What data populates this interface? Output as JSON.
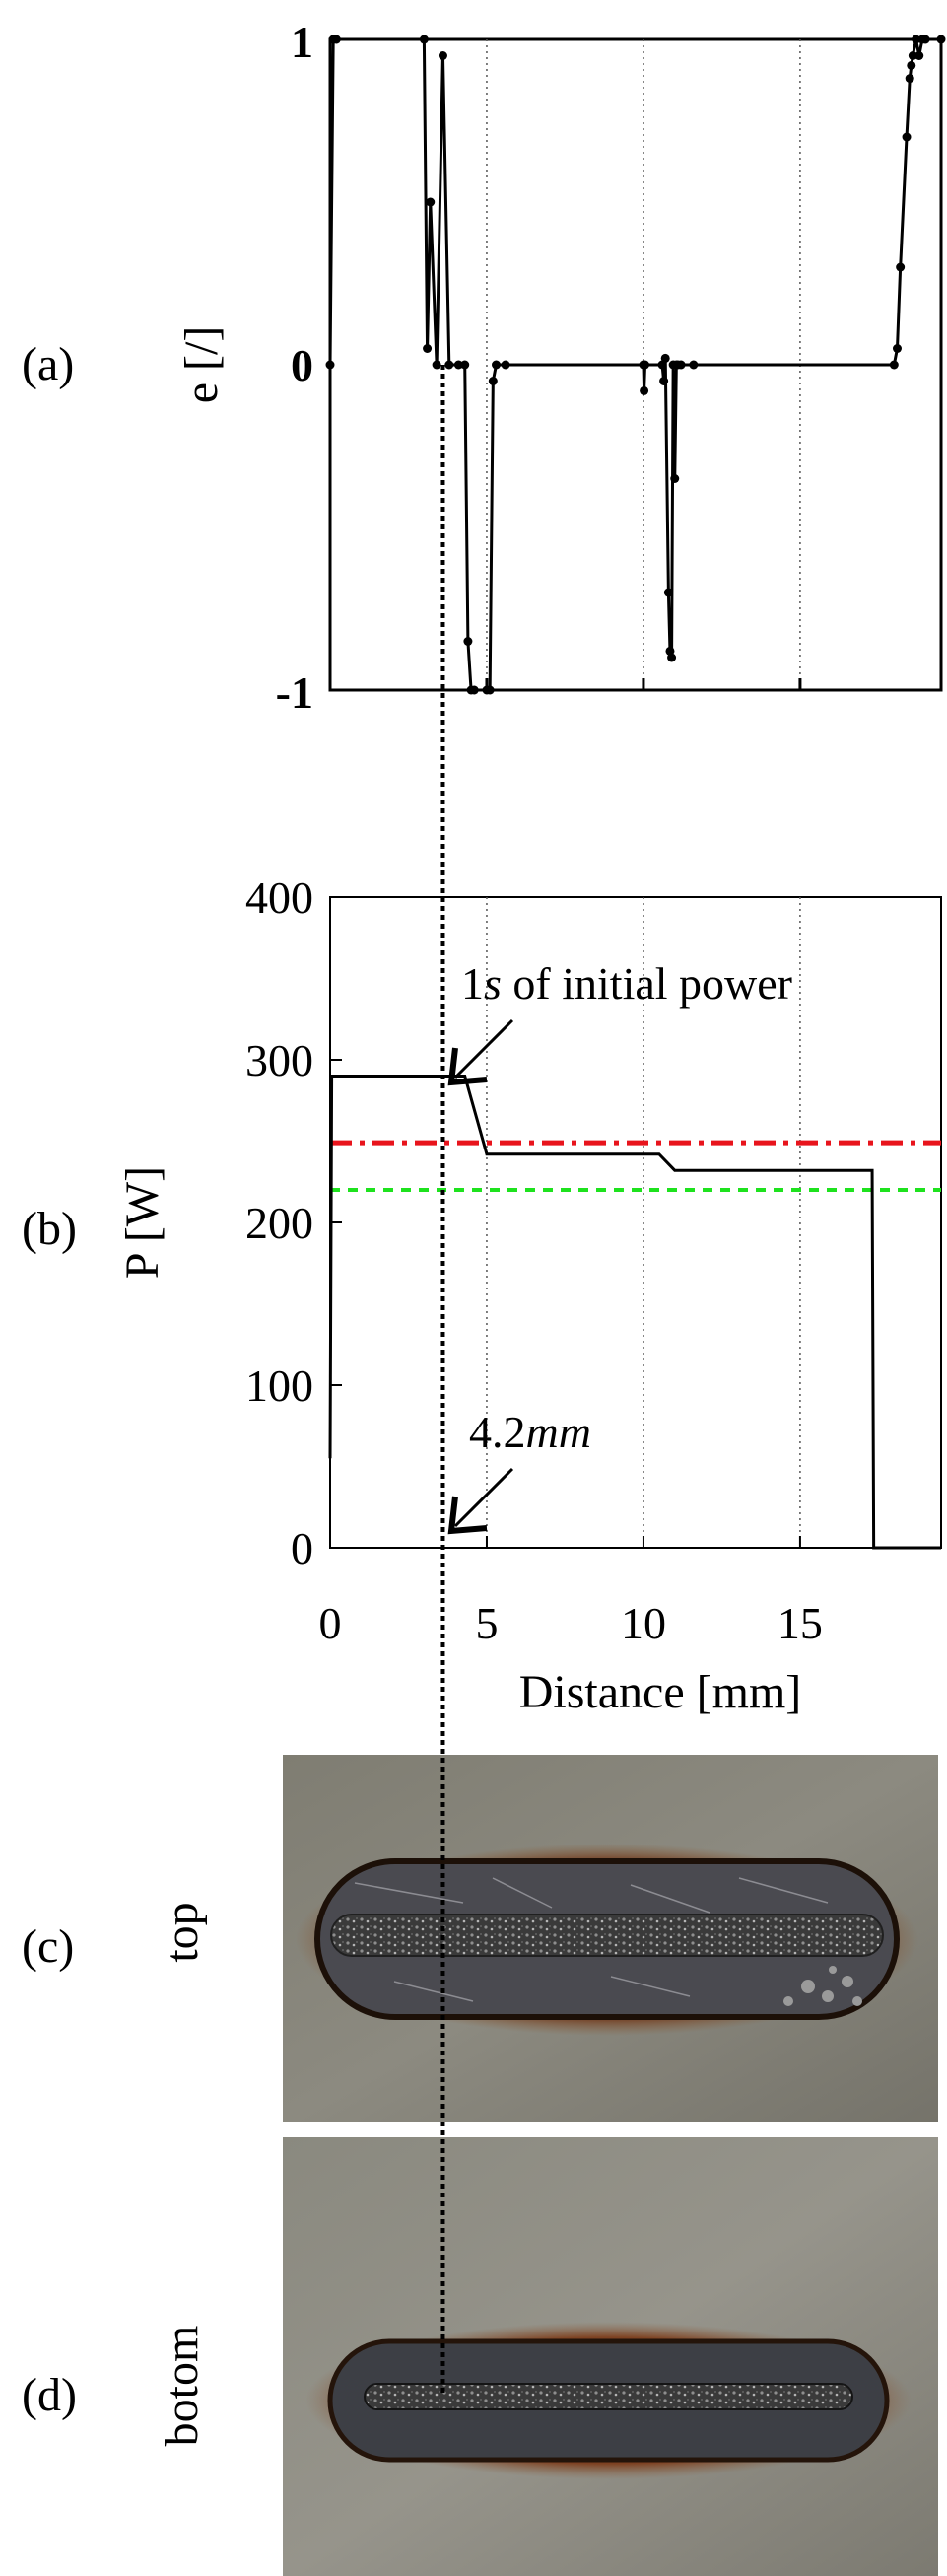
{
  "figure": {
    "panels": {
      "a": {
        "label": "(a)"
      },
      "b": {
        "label": "(b)"
      },
      "c": {
        "label": "(c)",
        "side_label": "top"
      },
      "d": {
        "label": "(d)",
        "side_label": "botom"
      }
    }
  },
  "chart_data": [
    {
      "id": "a",
      "type": "line",
      "ylabel": "e [/]",
      "ylim": [
        -1,
        1
      ],
      "xlim": [
        0,
        19.5
      ],
      "ytick_labels": [
        "1",
        "0",
        "-1"
      ],
      "xticks": [
        0,
        5,
        10,
        15
      ],
      "vertical_dotted_lines_at": [
        5,
        10,
        15
      ],
      "grid": false,
      "series": [
        {
          "color": "#000000",
          "marker": "dot",
          "x": [
            0,
            0.1,
            0.2,
            3.0,
            3.1,
            3.2,
            3.4,
            3.6,
            3.8,
            4.1,
            4.3,
            4.4,
            4.5,
            4.6,
            5.0,
            5.1,
            5.2,
            5.3,
            5.6,
            10.0,
            10.02,
            10.05,
            10.6,
            10.65,
            10.7,
            10.8,
            10.85,
            10.9,
            10.95,
            11.0,
            11.05,
            11.1,
            11.2,
            11.6,
            18.0,
            18.1,
            18.2,
            18.4,
            18.5,
            18.55,
            18.6,
            18.7,
            18.8,
            18.9,
            19.0,
            19.5
          ],
          "y": [
            0,
            1,
            1,
            1,
            0.05,
            0.5,
            0,
            0.95,
            0,
            0,
            0,
            -0.85,
            -1,
            -1,
            -1,
            -1,
            -0.05,
            0,
            0,
            0,
            -0.08,
            0,
            0,
            -0.05,
            0.02,
            -0.7,
            -0.88,
            -0.9,
            0,
            -0.35,
            0,
            0,
            0,
            0,
            0,
            0.05,
            0.3,
            0.7,
            0.88,
            0.92,
            0.95,
            1,
            0.95,
            1,
            1,
            1
          ]
        }
      ]
    },
    {
      "id": "b",
      "type": "line",
      "ylabel": "P [W]",
      "xlabel": "Distance [mm]",
      "ylim": [
        0,
        400
      ],
      "xlim": [
        0,
        19.5
      ],
      "ytick_labels": [
        "400",
        "300",
        "200",
        "100",
        "0"
      ],
      "yticks": [
        400,
        300,
        200,
        100,
        0
      ],
      "xtick_labels": [
        "0",
        "5",
        "10",
        "15"
      ],
      "xticks": [
        0,
        5,
        10,
        15
      ],
      "vertical_dotted_lines_at": [
        5,
        10,
        15
      ],
      "grid": false,
      "series": [
        {
          "color": "#000000",
          "style": "solid",
          "x": [
            0,
            0.05,
            0.1,
            4.3,
            5.0,
            10.5,
            11.0,
            17.3,
            17.35,
            17.45,
            19.5
          ],
          "y": [
            55,
            290,
            290,
            290,
            242,
            242,
            232,
            232,
            0,
            0,
            0
          ]
        },
        {
          "color": "#e8141c",
          "style": "dash-dot",
          "x": [
            0,
            19.5
          ],
          "y": [
            249,
            249
          ]
        },
        {
          "color": "#1ee21e",
          "style": "dashed",
          "x": [
            0,
            19.5
          ],
          "y": [
            220,
            220
          ]
        }
      ],
      "annotations": [
        {
          "text_plain": "1",
          "text_italic": "s",
          "text_rest": " of initial power",
          "arrow_target_x": 3.6,
          "arrow_target_y": 300
        },
        {
          "text_plain": "4.2",
          "text_italic": "mm",
          "text_rest": "",
          "arrow_target_x": 3.6,
          "arrow_target_y": 0
        }
      ],
      "marker_line_x": 3.6
    }
  ]
}
